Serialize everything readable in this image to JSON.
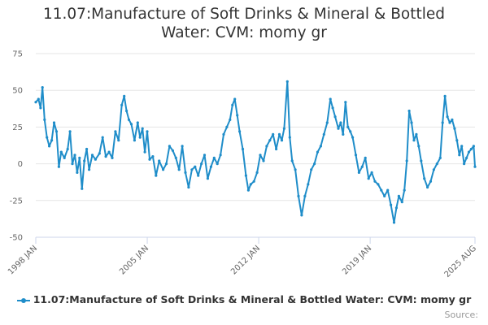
{
  "chart_data": {
    "type": "line",
    "title_line1": "11.07:Manufacture of Soft Drinks & Mineral & Bottled",
    "title_line2": "Water: CVM: momy gr",
    "xlabel": "",
    "ylabel": "",
    "ylim": [
      -50,
      75
    ],
    "yticks": [
      "75",
      "50",
      "25",
      "0",
      "-25",
      "-50"
    ],
    "ytick_values": [
      75,
      50,
      25,
      0,
      -25,
      -50
    ],
    "xticks": [
      {
        "label": "1998 JAN",
        "t": 1998.0
      },
      {
        "label": "2005 JAN",
        "t": 2005.0
      },
      {
        "label": "2012 JAN",
        "t": 2012.0
      },
      {
        "label": "2019 JAN",
        "t": 2019.0
      },
      {
        "label": "2025 AUG",
        "t": 2025.583
      }
    ],
    "grid": true,
    "legend_position": "bottom-center",
    "series": [
      {
        "name": "11.07:Manufacture of Soft Drinks & Mineral & Bottled Water: CVM: momy gr",
        "color": "#1f8dc9",
        "points": [
          [
            1998.0,
            42
          ],
          [
            1998.17,
            44
          ],
          [
            1998.3,
            38
          ],
          [
            1998.42,
            52
          ],
          [
            1998.55,
            30
          ],
          [
            1998.7,
            18
          ],
          [
            1998.85,
            12
          ],
          [
            1999.0,
            16
          ],
          [
            1999.15,
            28
          ],
          [
            1999.3,
            22
          ],
          [
            1999.45,
            -2
          ],
          [
            1999.6,
            8
          ],
          [
            1999.8,
            4
          ],
          [
            2000.0,
            10
          ],
          [
            2000.15,
            22
          ],
          [
            2000.3,
            0
          ],
          [
            2000.45,
            6
          ],
          [
            2000.6,
            -6
          ],
          [
            2000.75,
            4
          ],
          [
            2000.9,
            -17
          ],
          [
            2001.05,
            2
          ],
          [
            2001.2,
            10
          ],
          [
            2001.35,
            -4
          ],
          [
            2001.55,
            6
          ],
          [
            2001.75,
            3
          ],
          [
            2002.0,
            7
          ],
          [
            2002.2,
            18
          ],
          [
            2002.4,
            5
          ],
          [
            2002.6,
            8
          ],
          [
            2002.8,
            4
          ],
          [
            2003.0,
            22
          ],
          [
            2003.2,
            16
          ],
          [
            2003.4,
            40
          ],
          [
            2003.55,
            46
          ],
          [
            2003.7,
            36
          ],
          [
            2003.85,
            30
          ],
          [
            2004.0,
            27
          ],
          [
            2004.2,
            16
          ],
          [
            2004.4,
            28
          ],
          [
            2004.55,
            18
          ],
          [
            2004.7,
            24
          ],
          [
            2004.85,
            8
          ],
          [
            2005.0,
            22
          ],
          [
            2005.15,
            3
          ],
          [
            2005.35,
            5
          ],
          [
            2005.55,
            -8
          ],
          [
            2005.75,
            2
          ],
          [
            2006.0,
            -4
          ],
          [
            2006.2,
            0
          ],
          [
            2006.4,
            12
          ],
          [
            2006.6,
            9
          ],
          [
            2006.8,
            4
          ],
          [
            2007.0,
            -4
          ],
          [
            2007.2,
            12
          ],
          [
            2007.4,
            -6
          ],
          [
            2007.6,
            -16
          ],
          [
            2007.8,
            -4
          ],
          [
            2008.0,
            -2
          ],
          [
            2008.2,
            -8
          ],
          [
            2008.4,
            0
          ],
          [
            2008.6,
            6
          ],
          [
            2008.8,
            -10
          ],
          [
            2009.0,
            -2
          ],
          [
            2009.2,
            4
          ],
          [
            2009.4,
            0
          ],
          [
            2009.6,
            6
          ],
          [
            2009.8,
            20
          ],
          [
            2010.0,
            25
          ],
          [
            2010.2,
            30
          ],
          [
            2010.35,
            40
          ],
          [
            2010.5,
            44
          ],
          [
            2010.65,
            33
          ],
          [
            2010.8,
            22
          ],
          [
            2011.0,
            10
          ],
          [
            2011.2,
            -8
          ],
          [
            2011.35,
            -18
          ],
          [
            2011.5,
            -14
          ],
          [
            2011.7,
            -12
          ],
          [
            2011.9,
            -6
          ],
          [
            2012.1,
            6
          ],
          [
            2012.3,
            2
          ],
          [
            2012.5,
            12
          ],
          [
            2012.7,
            16
          ],
          [
            2012.9,
            20
          ],
          [
            2013.1,
            10
          ],
          [
            2013.3,
            20
          ],
          [
            2013.45,
            16
          ],
          [
            2013.6,
            24
          ],
          [
            2013.8,
            56
          ],
          [
            2013.95,
            18
          ],
          [
            2014.1,
            2
          ],
          [
            2014.3,
            -4
          ],
          [
            2014.5,
            -22
          ],
          [
            2014.7,
            -35
          ],
          [
            2014.9,
            -22
          ],
          [
            2015.1,
            -14
          ],
          [
            2015.3,
            -4
          ],
          [
            2015.5,
            0
          ],
          [
            2015.7,
            8
          ],
          [
            2015.9,
            12
          ],
          [
            2016.1,
            20
          ],
          [
            2016.3,
            28
          ],
          [
            2016.5,
            44
          ],
          [
            2016.65,
            38
          ],
          [
            2016.8,
            32
          ],
          [
            2017.0,
            24
          ],
          [
            2017.15,
            28
          ],
          [
            2017.3,
            20
          ],
          [
            2017.45,
            42
          ],
          [
            2017.6,
            25
          ],
          [
            2017.75,
            22
          ],
          [
            2017.9,
            18
          ],
          [
            2018.1,
            6
          ],
          [
            2018.3,
            -6
          ],
          [
            2018.5,
            -2
          ],
          [
            2018.7,
            4
          ],
          [
            2018.9,
            -10
          ],
          [
            2019.1,
            -6
          ],
          [
            2019.3,
            -12
          ],
          [
            2019.5,
            -14
          ],
          [
            2019.7,
            -18
          ],
          [
            2019.9,
            -22
          ],
          [
            2020.1,
            -18
          ],
          [
            2020.3,
            -28
          ],
          [
            2020.5,
            -40
          ],
          [
            2020.65,
            -30
          ],
          [
            2020.8,
            -22
          ],
          [
            2021.0,
            -26
          ],
          [
            2021.15,
            -18
          ],
          [
            2021.3,
            2
          ],
          [
            2021.45,
            36
          ],
          [
            2021.6,
            28
          ],
          [
            2021.75,
            16
          ],
          [
            2021.9,
            20
          ],
          [
            2022.05,
            12
          ],
          [
            2022.2,
            2
          ],
          [
            2022.4,
            -10
          ],
          [
            2022.6,
            -16
          ],
          [
            2022.8,
            -12
          ],
          [
            2023.0,
            -4
          ],
          [
            2023.2,
            0
          ],
          [
            2023.4,
            4
          ],
          [
            2023.55,
            28
          ],
          [
            2023.7,
            46
          ],
          [
            2023.85,
            32
          ],
          [
            2024.0,
            28
          ],
          [
            2024.15,
            30
          ],
          [
            2024.3,
            24
          ],
          [
            2024.45,
            16
          ],
          [
            2024.6,
            6
          ],
          [
            2024.75,
            12
          ],
          [
            2024.9,
            0
          ],
          [
            2025.05,
            4
          ],
          [
            2025.2,
            8
          ],
          [
            2025.35,
            10
          ],
          [
            2025.5,
            12
          ],
          [
            2025.583,
            -2
          ]
        ]
      }
    ]
  },
  "legend": {
    "label": "11.07:Manufacture of Soft Drinks & Mineral & Bottled Water: CVM: momy gr"
  },
  "source_label": "Source:"
}
